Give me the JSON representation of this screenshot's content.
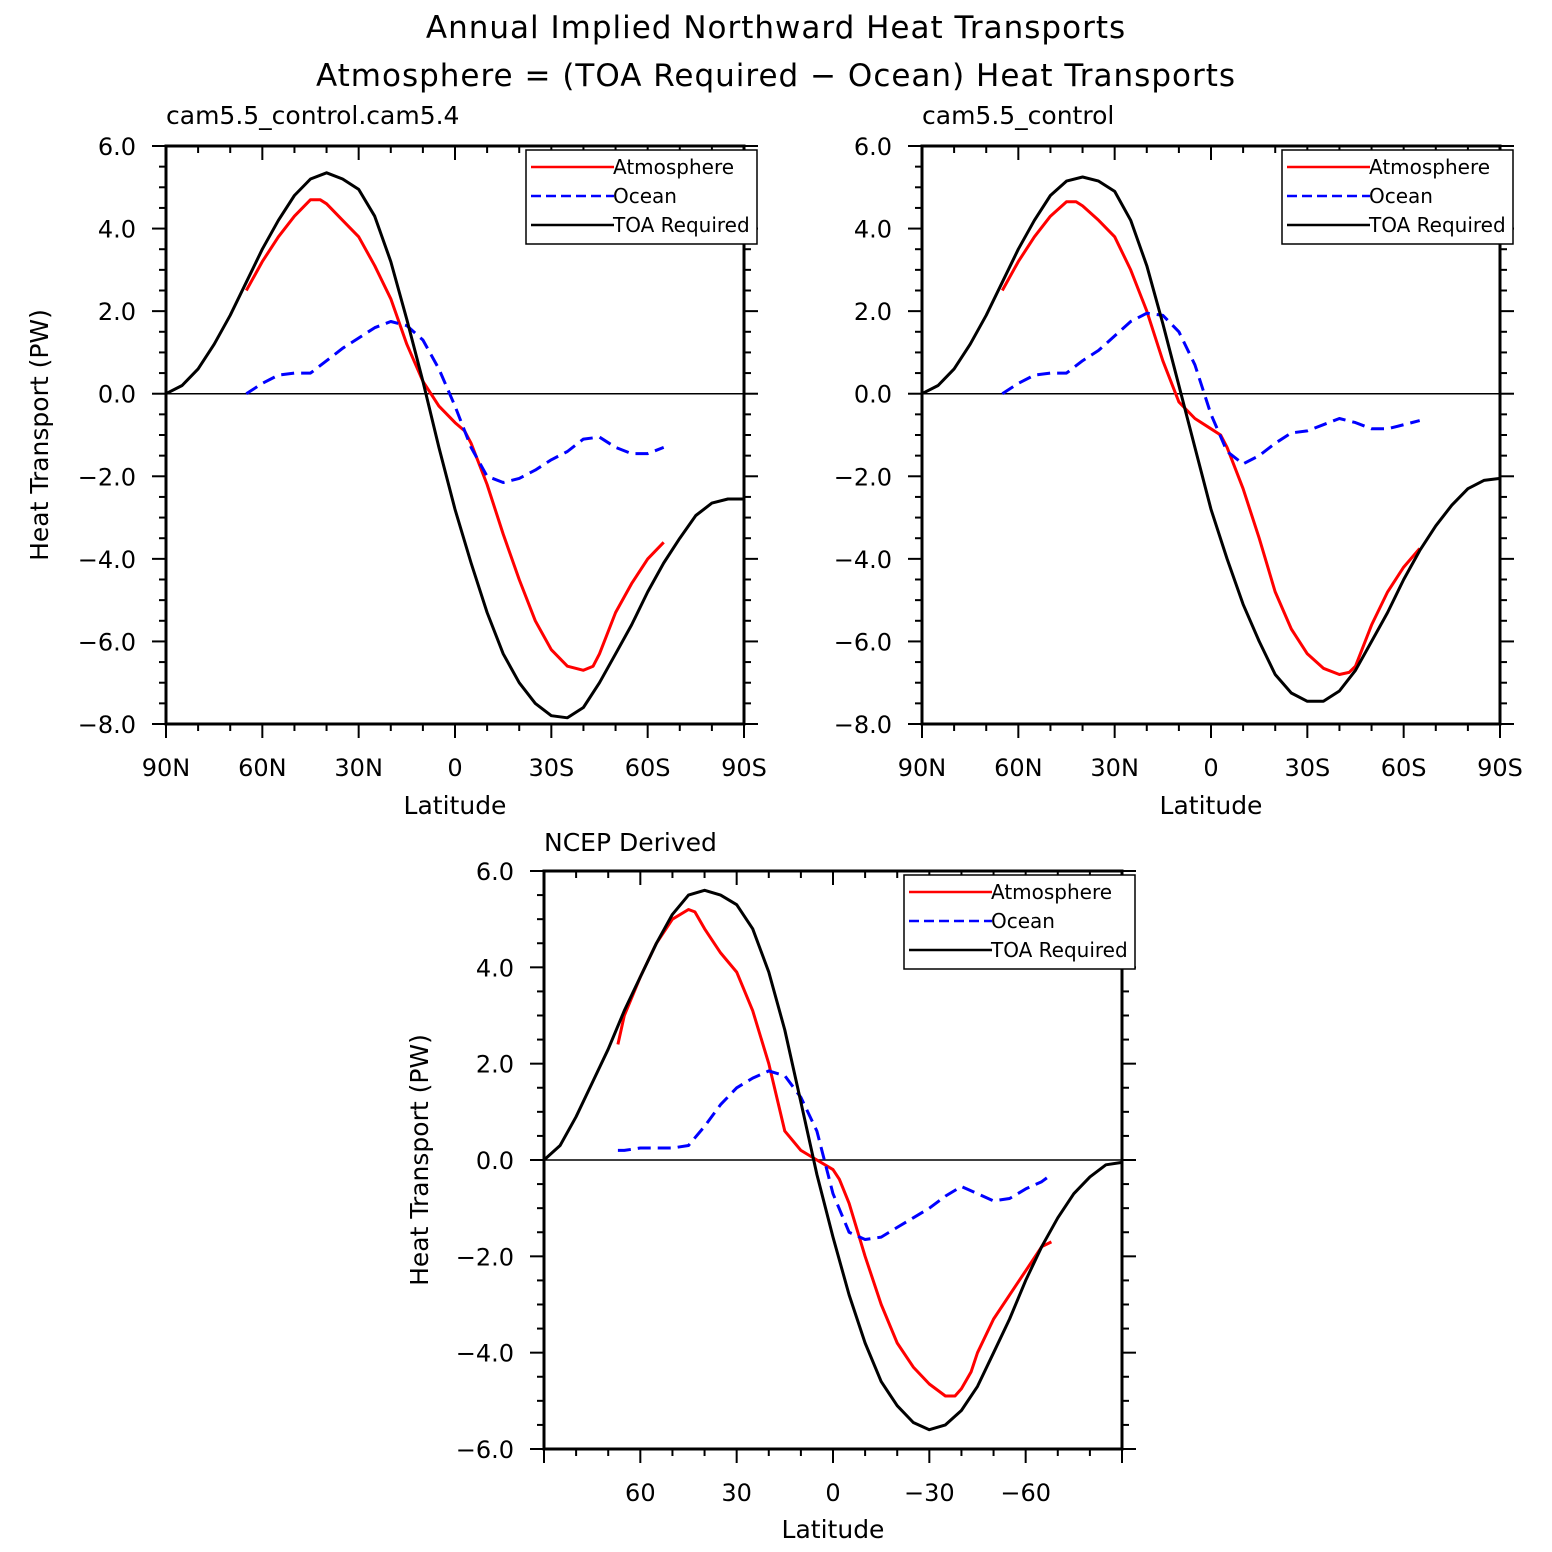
{
  "figure": {
    "title": "Annual Implied Northward Heat Transports",
    "subtitle": "Atmosphere = (TOA Required − Ocean) Heat Transports"
  },
  "chart_data": [
    {
      "type": "line",
      "title": "cam5.5_control.cam5.4",
      "xlabel": "Latitude",
      "ylabel": "Heat Transport (PW)",
      "xlim": [
        90,
        -90
      ],
      "ylim": [
        -8,
        6
      ],
      "x_ticks": [
        90,
        60,
        30,
        0,
        -30,
        -60,
        -90
      ],
      "x_tick_labels": [
        "90N",
        "60N",
        "30N",
        "0",
        "30S",
        "60S",
        "90S"
      ],
      "y_ticks": [
        6,
        4,
        2,
        0,
        -2,
        -4,
        -6,
        -8
      ],
      "y_tick_labels": [
        "6.0",
        "4.0",
        "2.0",
        "0.0",
        "−2.0",
        "−4.0",
        "−6.0",
        "−8.0"
      ],
      "grid": false,
      "zero_line": true,
      "legend": "top-right",
      "series": [
        {
          "name": "Atmosphere",
          "color": "#ff0000",
          "dash": "solid",
          "x": [
            65,
            60,
            55,
            50,
            45,
            42,
            40,
            35,
            30,
            25,
            20,
            15,
            10,
            5,
            0,
            -3,
            -5,
            -10,
            -15,
            -20,
            -25,
            -30,
            -35,
            -40,
            -43,
            -45,
            -50,
            -55,
            -60,
            -65
          ],
          "y": [
            2.5,
            3.2,
            3.8,
            4.3,
            4.7,
            4.7,
            4.6,
            4.2,
            3.8,
            3.1,
            2.3,
            1.2,
            0.3,
            -0.3,
            -0.7,
            -0.9,
            -1.2,
            -2.2,
            -3.4,
            -4.5,
            -5.5,
            -6.2,
            -6.6,
            -6.7,
            -6.6,
            -6.3,
            -5.3,
            -4.6,
            -4.0,
            -3.6
          ]
        },
        {
          "name": "Ocean",
          "color": "#0000ff",
          "dash": "dashed",
          "x": [
            65,
            60,
            55,
            50,
            45,
            40,
            35,
            30,
            25,
            20,
            15,
            10,
            5,
            0,
            -5,
            -10,
            -15,
            -20,
            -25,
            -30,
            -35,
            -40,
            -45,
            -50,
            -55,
            -60,
            -65
          ],
          "y": [
            0.0,
            0.25,
            0.45,
            0.5,
            0.5,
            0.8,
            1.1,
            1.35,
            1.6,
            1.75,
            1.65,
            1.3,
            0.6,
            -0.3,
            -1.3,
            -2.0,
            -2.15,
            -2.05,
            -1.85,
            -1.6,
            -1.4,
            -1.1,
            -1.05,
            -1.3,
            -1.45,
            -1.45,
            -1.3
          ]
        },
        {
          "name": "TOA Required",
          "color": "#000000",
          "dash": "solid",
          "x": [
            90,
            85,
            80,
            75,
            70,
            65,
            60,
            55,
            50,
            45,
            40,
            35,
            30,
            25,
            20,
            15,
            10,
            5,
            0,
            -5,
            -10,
            -15,
            -20,
            -25,
            -30,
            -35,
            -40,
            -45,
            -50,
            -55,
            -60,
            -65,
            -70,
            -75,
            -80,
            -85,
            -90
          ],
          "y": [
            0.0,
            0.2,
            0.6,
            1.2,
            1.9,
            2.7,
            3.5,
            4.2,
            4.8,
            5.2,
            5.35,
            5.2,
            4.95,
            4.3,
            3.2,
            1.8,
            0.3,
            -1.3,
            -2.8,
            -4.1,
            -5.3,
            -6.3,
            -7.0,
            -7.5,
            -7.8,
            -7.85,
            -7.6,
            -7.0,
            -6.3,
            -5.6,
            -4.8,
            -4.1,
            -3.5,
            -2.95,
            -2.65,
            -2.55,
            -2.55
          ]
        }
      ]
    },
    {
      "type": "line",
      "title": "cam5.5_control",
      "xlabel": "Latitude",
      "ylabel": "",
      "xlim": [
        90,
        -90
      ],
      "ylim": [
        -8,
        6
      ],
      "x_ticks": [
        90,
        60,
        30,
        0,
        -30,
        -60,
        -90
      ],
      "x_tick_labels": [
        "90N",
        "60N",
        "30N",
        "0",
        "30S",
        "60S",
        "90S"
      ],
      "y_ticks": [
        6,
        4,
        2,
        0,
        -2,
        -4,
        -6,
        -8
      ],
      "y_tick_labels": [
        "6.0",
        "4.0",
        "2.0",
        "0.0",
        "−2.0",
        "−4.0",
        "−6.0",
        "−8.0"
      ],
      "grid": false,
      "zero_line": true,
      "legend": "top-right",
      "series": [
        {
          "name": "Atmosphere",
          "color": "#ff0000",
          "dash": "solid",
          "x": [
            65,
            60,
            55,
            50,
            45,
            42,
            40,
            35,
            30,
            25,
            20,
            15,
            10,
            5,
            0,
            -3,
            -5,
            -10,
            -15,
            -20,
            -25,
            -30,
            -35,
            -40,
            -43,
            -45,
            -50,
            -55,
            -60,
            -65
          ],
          "y": [
            2.5,
            3.2,
            3.8,
            4.3,
            4.65,
            4.65,
            4.55,
            4.2,
            3.8,
            3.0,
            2.0,
            0.8,
            -0.2,
            -0.6,
            -0.85,
            -1.0,
            -1.3,
            -2.3,
            -3.5,
            -4.8,
            -5.7,
            -6.3,
            -6.65,
            -6.8,
            -6.75,
            -6.6,
            -5.6,
            -4.8,
            -4.2,
            -3.75
          ]
        },
        {
          "name": "Ocean",
          "color": "#0000ff",
          "dash": "dashed",
          "x": [
            65,
            60,
            55,
            50,
            45,
            40,
            35,
            30,
            25,
            20,
            15,
            10,
            5,
            0,
            -5,
            -10,
            -15,
            -20,
            -25,
            -30,
            -35,
            -40,
            -45,
            -50,
            -55,
            -60,
            -65
          ],
          "y": [
            0.0,
            0.25,
            0.45,
            0.5,
            0.5,
            0.8,
            1.05,
            1.4,
            1.75,
            1.95,
            1.9,
            1.5,
            0.7,
            -0.5,
            -1.4,
            -1.7,
            -1.5,
            -1.2,
            -0.95,
            -0.9,
            -0.75,
            -0.6,
            -0.7,
            -0.85,
            -0.85,
            -0.75,
            -0.65
          ]
        },
        {
          "name": "TOA Required",
          "color": "#000000",
          "dash": "solid",
          "x": [
            90,
            85,
            80,
            75,
            70,
            65,
            60,
            55,
            50,
            45,
            40,
            35,
            30,
            25,
            20,
            15,
            10,
            5,
            0,
            -5,
            -10,
            -15,
            -20,
            -25,
            -30,
            -35,
            -40,
            -45,
            -50,
            -55,
            -60,
            -65,
            -70,
            -75,
            -80,
            -85,
            -90
          ],
          "y": [
            0.0,
            0.2,
            0.6,
            1.2,
            1.9,
            2.7,
            3.5,
            4.2,
            4.8,
            5.15,
            5.25,
            5.15,
            4.9,
            4.2,
            3.1,
            1.7,
            0.2,
            -1.3,
            -2.8,
            -4.0,
            -5.1,
            -6.0,
            -6.8,
            -7.25,
            -7.45,
            -7.45,
            -7.2,
            -6.7,
            -6.0,
            -5.3,
            -4.5,
            -3.8,
            -3.2,
            -2.7,
            -2.3,
            -2.1,
            -2.05
          ]
        }
      ]
    },
    {
      "type": "line",
      "title": "NCEP Derived",
      "xlabel": "Latitude",
      "ylabel": "Heat Transport (PW)",
      "xlim": [
        90,
        -90
      ],
      "ylim": [
        -6,
        6
      ],
      "x_ticks": [
        60,
        30,
        0,
        -30,
        -60
      ],
      "x_tick_labels": [
        "60",
        "30",
        "0",
        "−30",
        "−60"
      ],
      "y_ticks": [
        6,
        4,
        2,
        0,
        -2,
        -4,
        -6
      ],
      "y_tick_labels": [
        "6.0",
        "4.0",
        "2.0",
        "0.0",
        "−2.0",
        "−4.0",
        "−6.0"
      ],
      "grid": false,
      "zero_line": true,
      "legend": "top-right",
      "series": [
        {
          "name": "Atmosphere",
          "color": "#ff0000",
          "dash": "solid",
          "x": [
            67,
            65,
            60,
            55,
            50,
            45,
            43,
            40,
            37,
            35,
            30,
            25,
            20,
            15,
            10,
            5,
            0,
            -2,
            -5,
            -10,
            -15,
            -20,
            -25,
            -30,
            -35,
            -38,
            -40,
            -43,
            -45,
            -50,
            -55,
            -60,
            -65,
            -68
          ],
          "y": [
            2.4,
            3.0,
            3.8,
            4.5,
            5.0,
            5.2,
            5.15,
            4.8,
            4.5,
            4.3,
            3.9,
            3.1,
            2.0,
            0.6,
            0.2,
            0.0,
            -0.2,
            -0.4,
            -0.9,
            -2.0,
            -3.0,
            -3.8,
            -4.3,
            -4.65,
            -4.9,
            -4.9,
            -4.75,
            -4.4,
            -4.0,
            -3.3,
            -2.8,
            -2.3,
            -1.8,
            -1.7
          ]
        },
        {
          "name": "Ocean",
          "color": "#0000ff",
          "dash": "dashed",
          "x": [
            67,
            65,
            60,
            55,
            50,
            45,
            40,
            35,
            30,
            25,
            20,
            15,
            10,
            5,
            0,
            -5,
            -10,
            -15,
            -20,
            -25,
            -30,
            -35,
            -40,
            -45,
            -50,
            -55,
            -60,
            -65,
            -68
          ],
          "y": [
            0.2,
            0.2,
            0.25,
            0.25,
            0.25,
            0.3,
            0.7,
            1.15,
            1.5,
            1.7,
            1.85,
            1.75,
            1.3,
            0.6,
            -0.7,
            -1.5,
            -1.65,
            -1.6,
            -1.4,
            -1.2,
            -1.0,
            -0.75,
            -0.55,
            -0.7,
            -0.85,
            -0.8,
            -0.6,
            -0.45,
            -0.3
          ]
        },
        {
          "name": "TOA Required",
          "color": "#000000",
          "dash": "solid",
          "x": [
            90,
            85,
            80,
            75,
            70,
            65,
            60,
            55,
            50,
            45,
            40,
            35,
            30,
            25,
            20,
            15,
            10,
            5,
            0,
            -5,
            -10,
            -15,
            -20,
            -25,
            -30,
            -35,
            -40,
            -45,
            -50,
            -55,
            -60,
            -65,
            -70,
            -75,
            -80,
            -85,
            -90
          ],
          "y": [
            0.0,
            0.3,
            0.9,
            1.6,
            2.3,
            3.1,
            3.8,
            4.5,
            5.1,
            5.5,
            5.6,
            5.5,
            5.3,
            4.8,
            3.9,
            2.7,
            1.2,
            -0.3,
            -1.6,
            -2.8,
            -3.8,
            -4.6,
            -5.1,
            -5.45,
            -5.6,
            -5.5,
            -5.2,
            -4.7,
            -4.0,
            -3.3,
            -2.5,
            -1.8,
            -1.2,
            -0.7,
            -0.35,
            -0.1,
            -0.05
          ]
        }
      ]
    }
  ]
}
